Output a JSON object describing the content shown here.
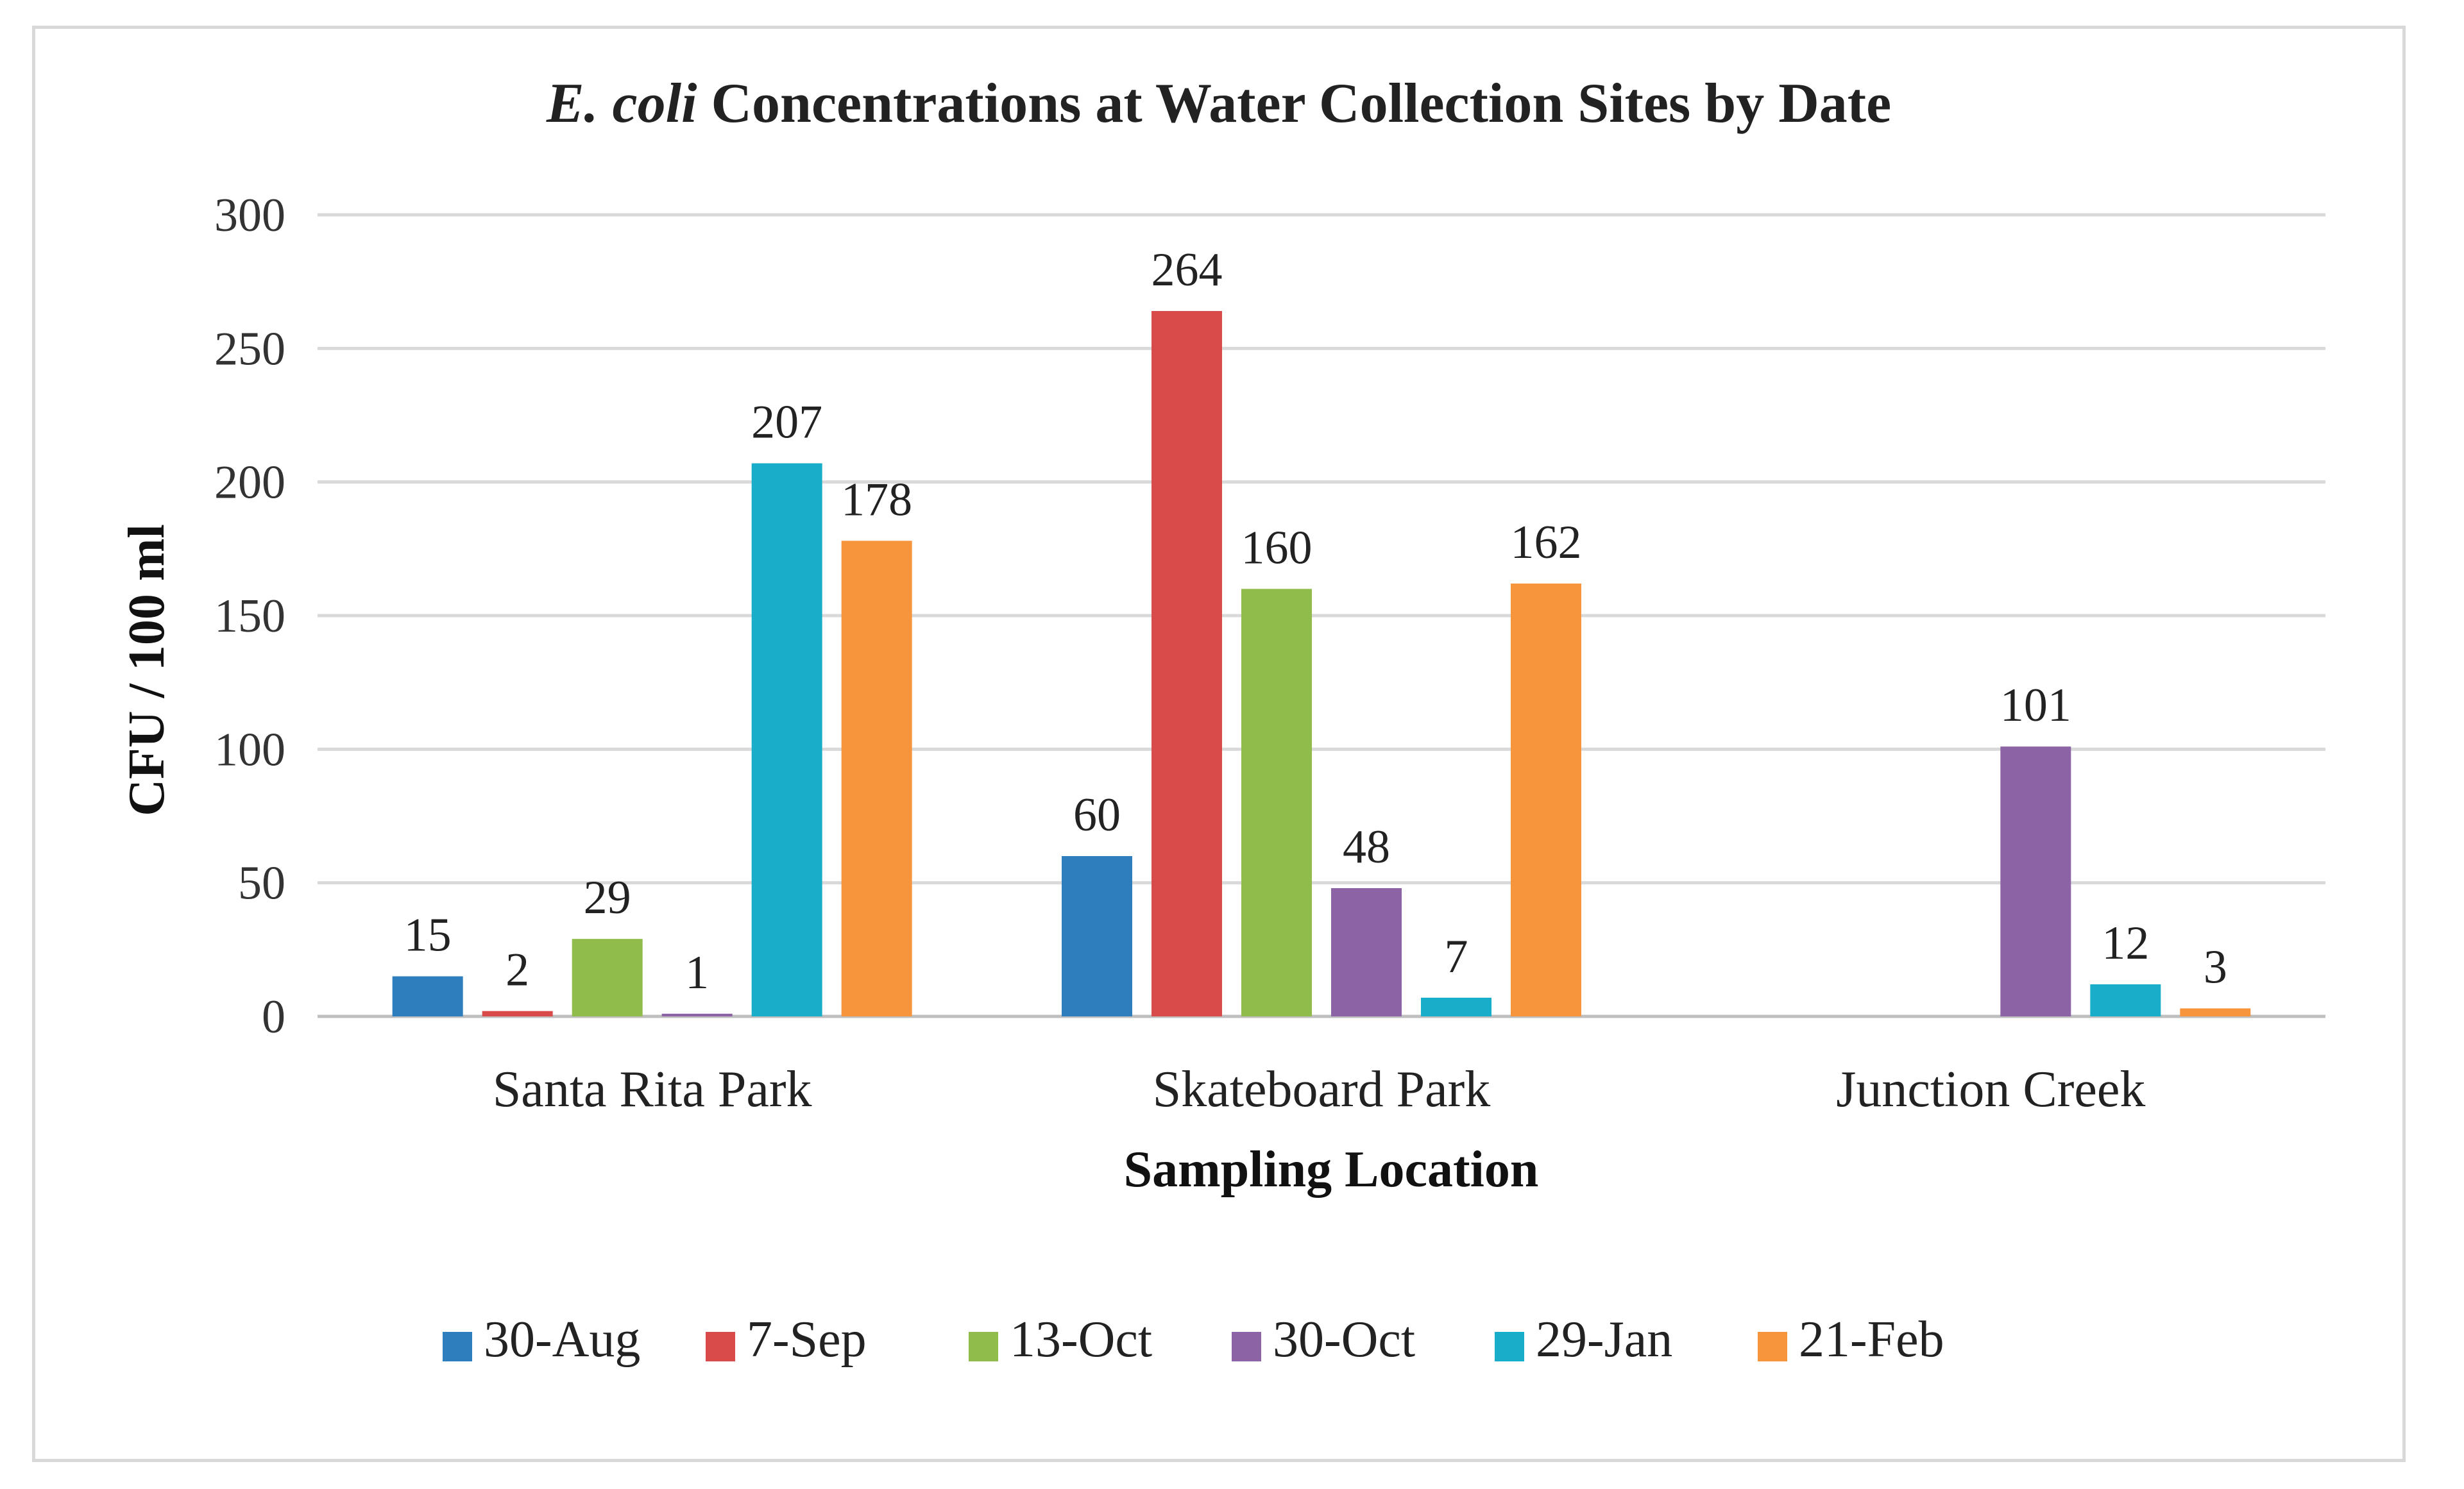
{
  "chart_data": {
    "type": "bar",
    "title": "E. coli Concentrations at Water Collection Sites by Date",
    "title_italic_part": "E. coli",
    "title_rest": "Concentrations at Water Collection Sites by Date",
    "xlabel": "Sampling Location",
    "ylabel": "CFU / 100 ml",
    "ylim": [
      0,
      300
    ],
    "yticks": [
      0,
      50,
      100,
      150,
      200,
      250,
      300
    ],
    "grid": true,
    "legend_position": "bottom",
    "categories": [
      "Santa Rita Park",
      "Skateboard Park",
      "Junction Creek"
    ],
    "series": [
      {
        "name": "30-Aug",
        "color": "#2e7ebe",
        "values": [
          15,
          60,
          0
        ],
        "labels": [
          "15",
          "60",
          ""
        ]
      },
      {
        "name": "7-Sep",
        "color": "#d94a4a",
        "values": [
          2,
          264,
          0
        ],
        "labels": [
          "2",
          "264",
          ""
        ]
      },
      {
        "name": "13-Oct",
        "color": "#8fbc4b",
        "values": [
          29,
          160,
          0
        ],
        "labels": [
          "29",
          "160",
          ""
        ]
      },
      {
        "name": "30-Oct",
        "color": "#8c64a6",
        "values": [
          1,
          48,
          101
        ],
        "labels": [
          "1",
          "48",
          "101"
        ]
      },
      {
        "name": "29-Jan",
        "color": "#18aec9",
        "values": [
          207,
          7,
          12
        ],
        "labels": [
          "207",
          "7",
          "12"
        ]
      },
      {
        "name": "21-Feb",
        "color": "#f7953c",
        "values": [
          178,
          162,
          3
        ],
        "labels": [
          "178",
          "162",
          "3"
        ]
      }
    ]
  }
}
